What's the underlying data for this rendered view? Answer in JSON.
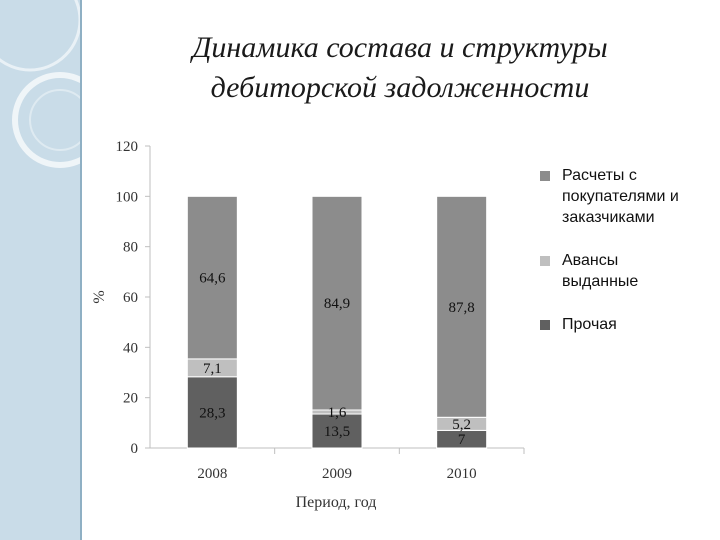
{
  "slide": {
    "title_line1": "Динамика состава и структуры",
    "title_line2": "дебиторской задолженности"
  },
  "chart_data": {
    "type": "bar",
    "stacked": true,
    "categories": [
      "2008",
      "2009",
      "2010"
    ],
    "series": [
      {
        "name": "Прочая",
        "values": [
          28.3,
          13.5,
          7
        ],
        "labels": [
          "28,3",
          "13,5",
          "7"
        ],
        "color": "#606060"
      },
      {
        "name": "Авансы выданные",
        "values": [
          7.1,
          1.6,
          5.2
        ],
        "labels": [
          "7,1",
          "1,6",
          "5,2"
        ],
        "color": "#bfbfbf"
      },
      {
        "name": "Расчеты с покупателями и заказчиками",
        "values": [
          64.6,
          84.9,
          87.8
        ],
        "labels": [
          "64,6",
          "84,9",
          "87,8"
        ],
        "color": "#8c8c8c"
      }
    ],
    "ylabel": "%",
    "xlabel": "Период, год",
    "ylim": [
      0,
      120
    ],
    "yticks": [
      0,
      20,
      40,
      60,
      80,
      100,
      120
    ],
    "grid": false,
    "legend_position": "right",
    "legend_order": [
      "Расчеты с покупателями и заказчиками",
      "Авансы выданные",
      "Прочая"
    ]
  },
  "legend": {
    "item1_line1": "Расчеты с",
    "item1_line2": "покупателями и",
    "item1_line3": "заказчиками",
    "item2_line1": "Авансы",
    "item2_line2": "выданные",
    "item3_line1": "Прочая"
  },
  "colors": {
    "side_panel": "#c9dce8",
    "accent_circle": "#ffffff"
  }
}
